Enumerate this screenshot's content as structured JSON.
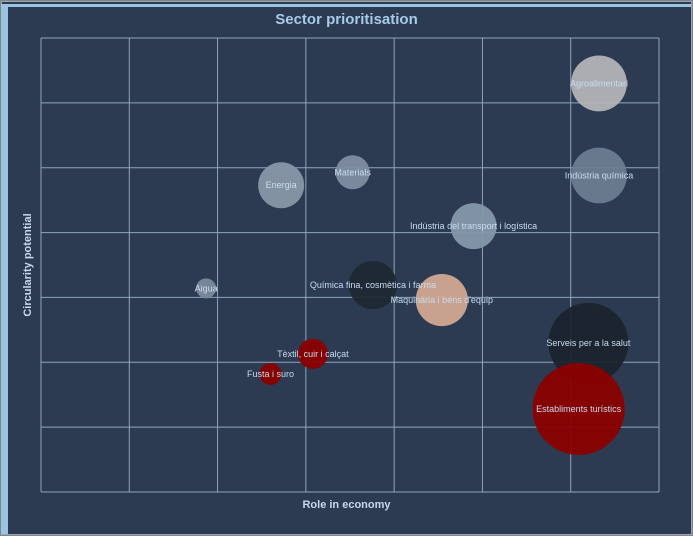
{
  "chart_data": {
    "type": "scatter",
    "subtype": "bubble",
    "title": "Sector prioritisation",
    "xlabel": "Role in economy",
    "ylabel": "Circularity potential",
    "xlim": [
      0,
      7
    ],
    "ylim": [
      0,
      7
    ],
    "grid": true,
    "tick_labels_shown": false,
    "points": [
      {
        "label": "Agroalimentari",
        "x": 6.32,
        "y": 6.3,
        "size": 7.8,
        "color": "#b3b3b6"
      },
      {
        "label": "Indústria química",
        "x": 6.32,
        "y": 4.88,
        "size": 7.8,
        "color": "#6c7c90"
      },
      {
        "label": "Energia",
        "x": 2.72,
        "y": 4.73,
        "size": 5.3,
        "color": "#8797a8"
      },
      {
        "label": "Materials",
        "x": 3.53,
        "y": 4.93,
        "size": 2.9,
        "color": "#7e8ea0"
      },
      {
        "label": "Indústria del transport i logística",
        "x": 4.9,
        "y": 4.1,
        "size": 5.3,
        "color": "#8598aa"
      },
      {
        "label": "Aigua",
        "x": 1.87,
        "y": 3.14,
        "size": 1.0,
        "color": "#7a8a9a"
      },
      {
        "label": "Química fina, cosmètica i farma",
        "x": 3.76,
        "y": 3.19,
        "size": 5.8,
        "color": "#1f2833"
      },
      {
        "label": "Maquinària i béns d'equip",
        "x": 4.54,
        "y": 2.96,
        "size": 6.8,
        "color": "#d2a892"
      },
      {
        "label": "Serveis per a la salut",
        "x": 6.2,
        "y": 2.3,
        "size": 16.0,
        "color": "#1b232d"
      },
      {
        "label": "Establiments turístics",
        "x": 6.09,
        "y": 1.28,
        "size": 21.2,
        "color": "#8b0000"
      },
      {
        "label": "Tèxtil, cuir i calçat",
        "x": 3.08,
        "y": 2.13,
        "size": 2.25,
        "color": "#8b0000"
      },
      {
        "label": "Fusta i suro",
        "x": 2.6,
        "y": 1.82,
        "size": 1.2,
        "color": "#8b0000"
      }
    ]
  }
}
